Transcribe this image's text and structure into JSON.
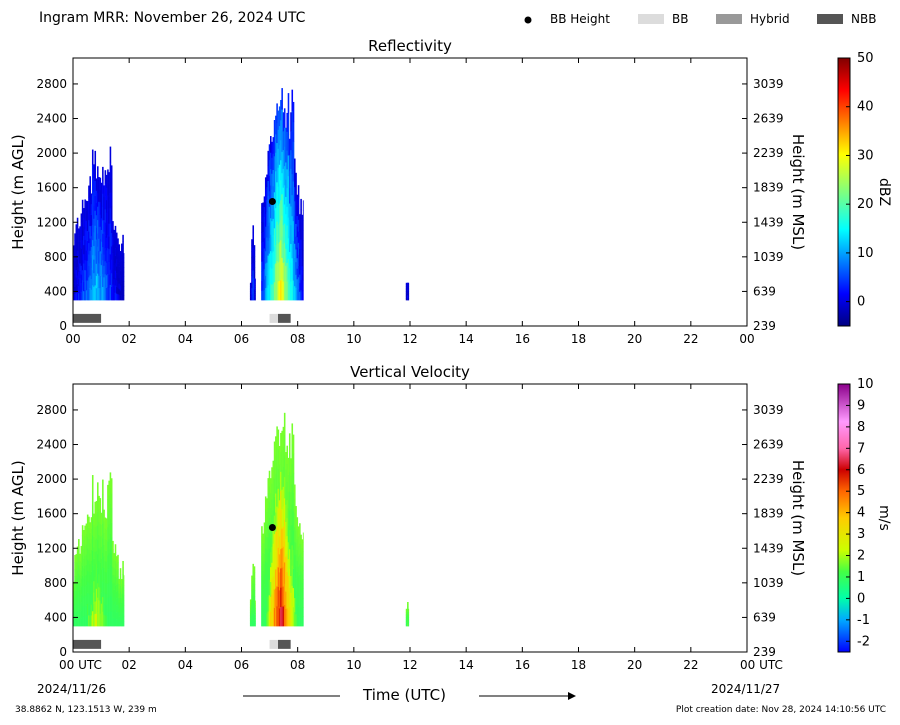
{
  "header": {
    "title": "Ingram MRR:  November 26, 2024 UTC",
    "legend": [
      {
        "label": "BB Height",
        "marker": "dot",
        "color": "#000000"
      },
      {
        "label": "BB",
        "marker": "box",
        "color": "#dcdcdc"
      },
      {
        "label": "Hybrid",
        "marker": "box",
        "color": "#999999"
      },
      {
        "label": "NBB",
        "marker": "box",
        "color": "#555555"
      }
    ]
  },
  "footer": {
    "location": "38.8862 N, 123.1513 W, 239 m",
    "creation": "Plot creation date: Nov 28, 2024 14:10:56 UTC",
    "xlabel": "Time (UTC)",
    "start_date": "2024/11/26",
    "end_date": "2024/11/27"
  },
  "chart_data": [
    {
      "type": "heatmap",
      "title": "Reflectivity",
      "ylabel": "Height (m AGL)",
      "y2label": "Height (m MSL)",
      "x_ticks": [
        "00",
        "02",
        "04",
        "06",
        "08",
        "10",
        "12",
        "14",
        "16",
        "18",
        "20",
        "22",
        "00"
      ],
      "y_ticks": [
        0,
        400,
        800,
        1200,
        1600,
        2000,
        2400,
        2800
      ],
      "y2_ticks": [
        239,
        639,
        1039,
        1439,
        1839,
        2239,
        2639,
        3039
      ],
      "xlim": [
        0,
        24
      ],
      "ylim": [
        0,
        3100
      ],
      "colorbar": {
        "label": "dBZ",
        "ticks": [
          0,
          10,
          20,
          30,
          40,
          50
        ],
        "range": [
          -5,
          50
        ],
        "colormap": "jet"
      },
      "bb_height": [
        {
          "time": 7.1,
          "height": 1440
        }
      ],
      "bands": [
        {
          "kind": "NBB",
          "start": 0.0,
          "end": 1.0
        },
        {
          "kind": "BB",
          "start": 7.0,
          "end": 7.3
        },
        {
          "kind": "NBB",
          "start": 7.3,
          "end": 7.75
        }
      ],
      "echoes": [
        {
          "start": 0.0,
          "end": 1.8,
          "base": 300,
          "top": 1700,
          "top2": 2100,
          "peak": 12
        },
        {
          "start": 6.3,
          "end": 6.5,
          "base": 300,
          "top": 1100,
          "peak": 5
        },
        {
          "start": 6.7,
          "end": 8.2,
          "base": 300,
          "top": 2500,
          "top2": 2800,
          "peak": 30
        },
        {
          "start": 11.85,
          "end": 11.95,
          "base": 300,
          "top": 600,
          "peak": 0
        }
      ]
    },
    {
      "type": "heatmap",
      "title": "Vertical Velocity",
      "ylabel": "Height (m AGL)",
      "y2label": "Height (m MSL)",
      "x_ticks": [
        "00 UTC",
        "02",
        "04",
        "06",
        "08",
        "10",
        "12",
        "14",
        "16",
        "18",
        "20",
        "22",
        "00 UTC"
      ],
      "y_ticks": [
        0,
        400,
        800,
        1200,
        1600,
        2000,
        2400,
        2800
      ],
      "y2_ticks": [
        239,
        639,
        1039,
        1439,
        1839,
        2239,
        2639,
        3039
      ],
      "xlim": [
        0,
        24
      ],
      "ylim": [
        0,
        3100
      ],
      "colorbar": {
        "label": "m/s",
        "ticks": [
          -2,
          -1,
          0,
          1,
          2,
          3,
          4,
          5,
          6,
          7,
          8,
          9,
          10
        ],
        "range": [
          -2.5,
          10
        ],
        "colormap": "velocity"
      },
      "bb_height": [
        {
          "time": 7.1,
          "height": 1440
        }
      ],
      "bands": [
        {
          "kind": "NBB",
          "start": 0.0,
          "end": 1.0
        },
        {
          "kind": "BB",
          "start": 7.0,
          "end": 7.3
        },
        {
          "kind": "NBB",
          "start": 7.3,
          "end": 7.75
        }
      ],
      "echoes": [
        {
          "start": 0.0,
          "end": 1.8,
          "base": 300,
          "top": 1700,
          "top2": 2100,
          "peak": 2.5
        },
        {
          "start": 6.3,
          "end": 6.5,
          "base": 300,
          "top": 1100,
          "peak": 1.2
        },
        {
          "start": 6.7,
          "end": 8.2,
          "base": 300,
          "top": 2500,
          "top2": 2800,
          "peak": 6.5
        },
        {
          "start": 11.85,
          "end": 11.95,
          "base": 300,
          "top": 600,
          "peak": 1.5
        }
      ]
    }
  ]
}
